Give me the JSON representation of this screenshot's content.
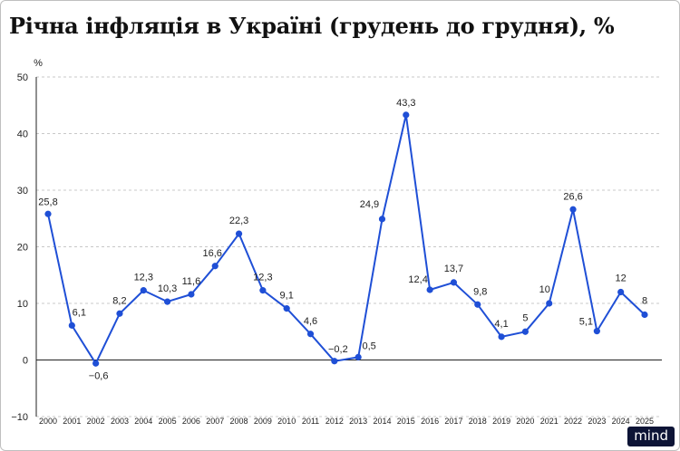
{
  "page": {
    "title": "Річна інфляція в Україні (грудень до грудня), %",
    "brand": "mind"
  },
  "chart_data": {
    "type": "line",
    "title": "Річна інфляція в Україні (грудень до грудня), %",
    "ylabel": "%",
    "xlabel": "",
    "ylim": [
      -10,
      50
    ],
    "yticks": [
      -10,
      0,
      10,
      20,
      30,
      40,
      50
    ],
    "grid": true,
    "legend": "none",
    "colors": {
      "line": "#1f4fd6",
      "marker": "#1f4fd6",
      "grid": "#c8c8c8",
      "axis": "#222222"
    },
    "x": [
      "2000",
      "2001",
      "2002",
      "2003",
      "2004",
      "2005",
      "2006",
      "2007",
      "2008",
      "2009",
      "2010",
      "2011",
      "2012",
      "2013",
      "2014",
      "2015",
      "2016",
      "2017",
      "2018",
      "2019",
      "2020",
      "2021",
      "2022",
      "2023",
      "2024",
      "2025"
    ],
    "series": [
      {
        "values": [
          25.8,
          6.1,
          -0.6,
          8.2,
          12.3,
          10.3,
          11.6,
          16.6,
          22.3,
          12.3,
          9.1,
          4.6,
          -0.2,
          0.5,
          24.9,
          43.3,
          12.4,
          13.7,
          9.8,
          4.1,
          5,
          10,
          26.6,
          5.1,
          12,
          8
        ],
        "labels": [
          "25,8",
          "6,1",
          "−0,6",
          "8,2",
          "12,3",
          "10,3",
          "11,6",
          "16,6",
          "22,3",
          "12,3",
          "9,1",
          "4,6",
          "−0,2",
          "0,5",
          "24,9",
          "43,3",
          "12,4",
          "13,7",
          "9,8",
          "4,1",
          "5",
          "10",
          "26,6",
          "5,1",
          "12",
          "8"
        ]
      }
    ]
  }
}
